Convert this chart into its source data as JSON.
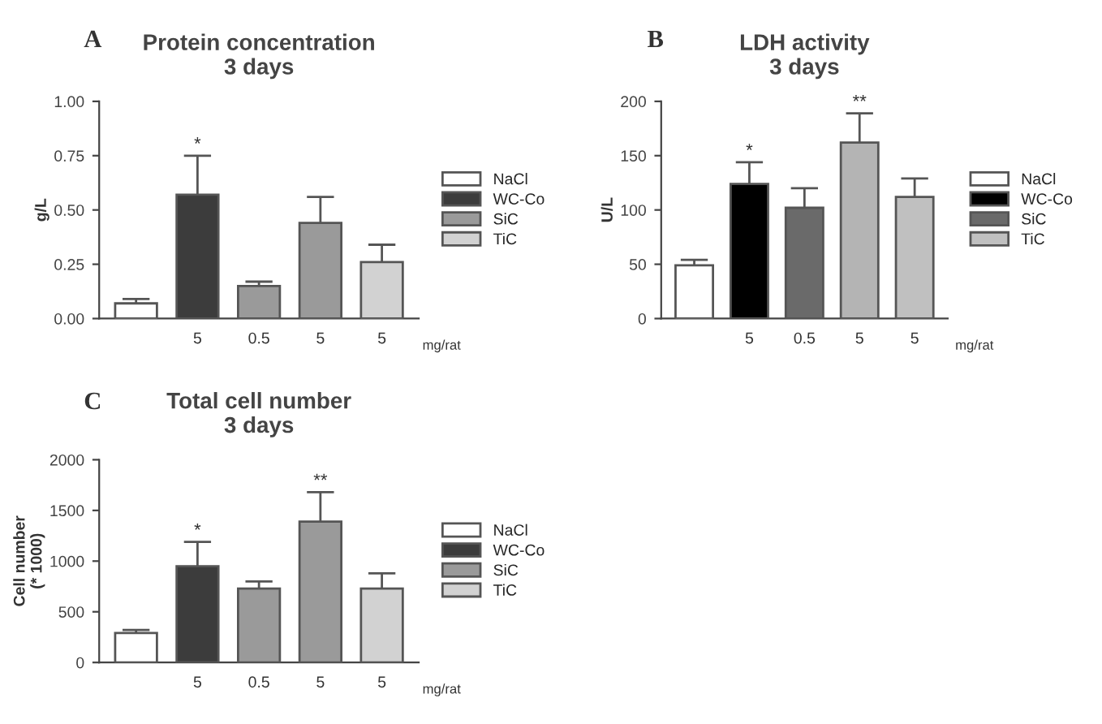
{
  "chart_data": [
    {
      "type": "bar",
      "title": "Protein concentration\n3 days",
      "ylabel": "g/L",
      "categories": [
        null,
        "5",
        "0.5",
        "5",
        "5"
      ],
      "stacked": true,
      "ylim": [
        0,
        1
      ],
      "yticks": [
        {
          "value": 0,
          "label": "0.00"
        },
        {
          "value": 0.25,
          "label": "0.25"
        },
        {
          "value": 0.5,
          "label": "0.50"
        },
        {
          "value": 0.75,
          "label": "0.75"
        },
        {
          "value": 1,
          "label": "1.00"
        }
      ],
      "legend": "right",
      "grid": false,
      "annotations": [
        "A",
        "mg/rat"
      ],
      "series": [
        {
          "name": "NaCl",
          "color": "#ffffff",
          "values": [
            0.07,
            null,
            null,
            null,
            null
          ],
          "errors": [
            0.02,
            null,
            null,
            null,
            null
          ]
        },
        {
          "name": "WC-Co",
          "color": "#3c3c3c",
          "values": [
            null,
            0.57,
            null,
            null,
            null
          ],
          "errors": [
            null,
            0.18,
            null,
            null,
            null
          ],
          "value_labels": [
            null,
            "*",
            null,
            null,
            null
          ]
        },
        {
          "name": "SiC",
          "color": "#9a9a9a",
          "values": [
            null,
            null,
            0.15,
            0.44,
            null
          ],
          "errors": [
            null,
            null,
            0.02,
            0.12,
            null
          ]
        },
        {
          "name": "TiC",
          "color": "#d2d2d2",
          "values": [
            null,
            null,
            null,
            null,
            0.26
          ],
          "errors": [
            null,
            null,
            null,
            null,
            0.08
          ]
        }
      ]
    },
    {
      "type": "bar",
      "title": "LDH activity\n3 days",
      "ylabel": "U/L",
      "categories": [
        null,
        "5",
        "0.5",
        "5",
        "5"
      ],
      "stacked": true,
      "ylim": [
        0,
        200
      ],
      "yticks": [
        0,
        50,
        100,
        150,
        200
      ],
      "legend": "right",
      "grid": false,
      "annotations": [
        "B",
        "mg/rat"
      ],
      "series": [
        {
          "name": "NaCl",
          "color": "#ffffff",
          "values": [
            49,
            null,
            null,
            null,
            null
          ],
          "errors": [
            5,
            null,
            null,
            null,
            null
          ]
        },
        {
          "name": "WC-Co",
          "color": "#000000",
          "values": [
            null,
            124,
            null,
            null,
            null
          ],
          "errors": [
            null,
            20,
            null,
            null,
            null
          ],
          "value_labels": [
            null,
            "*",
            null,
            null,
            null
          ]
        },
        {
          "name": "SiC",
          "color": "#6a6a6a",
          "colors": [
            null,
            null,
            "#6a6a6a",
            "#b4b4b4",
            null
          ],
          "values": [
            null,
            null,
            102,
            162,
            null
          ],
          "errors": [
            null,
            null,
            18,
            27,
            null
          ],
          "value_labels": [
            null,
            null,
            null,
            "**",
            null
          ]
        },
        {
          "name": "TiC",
          "color": "#c0c0c0",
          "values": [
            null,
            null,
            null,
            null,
            112
          ],
          "errors": [
            null,
            null,
            null,
            null,
            17
          ]
        }
      ]
    },
    {
      "type": "bar",
      "title": "Total cell number\n3 days",
      "ylabel": "Cell number\n(* 1000)",
      "categories": [
        null,
        "5",
        "0.5",
        "5",
        "5"
      ],
      "stacked": true,
      "ylim": [
        0,
        2000
      ],
      "yticks": [
        0,
        500,
        1000,
        1500,
        2000
      ],
      "legend": "right",
      "grid": false,
      "annotations": [
        "C",
        "mg/rat"
      ],
      "series": [
        {
          "name": "NaCl",
          "color": "#ffffff",
          "values": [
            290,
            null,
            null,
            null,
            null
          ],
          "errors": [
            30,
            null,
            null,
            null,
            null
          ]
        },
        {
          "name": "WC-Co",
          "color": "#3c3c3c",
          "values": [
            null,
            950,
            null,
            null,
            null
          ],
          "errors": [
            null,
            240,
            null,
            null,
            null
          ],
          "value_labels": [
            null,
            "*",
            null,
            null,
            null
          ]
        },
        {
          "name": "SiC",
          "color": "#9a9a9a",
          "values": [
            null,
            null,
            730,
            1390,
            null
          ],
          "errors": [
            null,
            null,
            70,
            290,
            null
          ],
          "value_labels": [
            null,
            null,
            null,
            "**",
            null
          ]
        },
        {
          "name": "TiC",
          "color": "#d2d2d2",
          "values": [
            null,
            null,
            null,
            null,
            730
          ],
          "errors": [
            null,
            null,
            null,
            null,
            150
          ]
        }
      ]
    }
  ]
}
